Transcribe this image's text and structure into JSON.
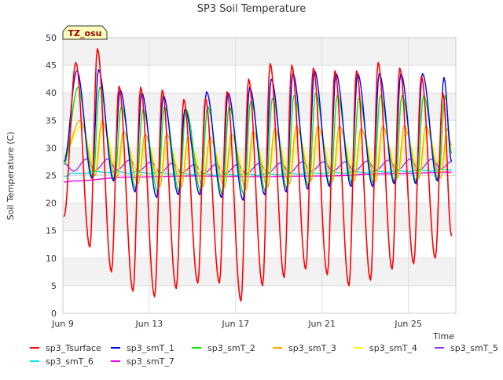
{
  "chart_data": {
    "type": "line",
    "title": "SP3 Soil Temperature",
    "xlabel": "Time",
    "ylabel": "Soil Temperature (C)",
    "site_label": "TZ_osu",
    "x_unit": "date (June)",
    "xlim": [
      9.0,
      27.2
    ],
    "ylim": [
      0,
      50
    ],
    "yticks": [
      0,
      5,
      10,
      15,
      20,
      25,
      30,
      35,
      40,
      45,
      50
    ],
    "xticks": [
      {
        "value": 9,
        "label": "Jun 9"
      },
      {
        "value": 13,
        "label": "Jun 13"
      },
      {
        "value": 17,
        "label": "Jun 17"
      },
      {
        "value": 21,
        "label": "Jun 21"
      },
      {
        "value": 25,
        "label": "Jun 25"
      }
    ],
    "grid": true,
    "legend_position": "bottom",
    "sample_step": 0.05,
    "series": [
      {
        "name": "sp3_Tsurface",
        "color": "#ff0000",
        "daily_peak_day": [
          9.6,
          10.6,
          11.6,
          12.6,
          13.6,
          14.6,
          15.6,
          16.6,
          17.6,
          18.6,
          19.6,
          20.6,
          21.6,
          22.6,
          23.6,
          24.6,
          25.6,
          26.6
        ],
        "daily_max": [
          45.5,
          48.0,
          41.2,
          41.0,
          40.5,
          38.8,
          39.0,
          40.2,
          42.5,
          45.3,
          45.0,
          44.5,
          44.0,
          44.0,
          45.5,
          44.5,
          43.0,
          40.0
        ],
        "daily_min_day": [
          10.25,
          11.25,
          12.25,
          13.25,
          14.25,
          15.25,
          16.25,
          17.25,
          18.25,
          19.25,
          20.25,
          21.25,
          22.25,
          23.25,
          24.25,
          25.25,
          26.25
        ],
        "daily_min": [
          12.0,
          7.5,
          4.0,
          3.0,
          4.5,
          5.5,
          5.5,
          2.2,
          5.0,
          6.5,
          8.0,
          7.0,
          5.0,
          6.0,
          8.0,
          9.0,
          10.0
        ],
        "start": {
          "x": 9.05,
          "y": 17.5
        },
        "end": {
          "x": 27.0,
          "y": 14.0
        }
      },
      {
        "name": "sp3_smT_1",
        "color": "#0000ff",
        "daily_peak_day": [
          9.65,
          10.65,
          11.65,
          12.65,
          13.65,
          14.65,
          15.65,
          16.65,
          17.65,
          18.65,
          19.65,
          20.65,
          21.65,
          22.65,
          23.65,
          24.65,
          25.65,
          26.65
        ],
        "daily_max": [
          44.0,
          44.2,
          40.5,
          40.0,
          39.5,
          37.0,
          40.2,
          40.0,
          41.0,
          42.5,
          43.5,
          44.0,
          43.5,
          43.5,
          43.5,
          43.5,
          43.5,
          42.8
        ],
        "daily_min_day": [
          10.35,
          11.35,
          12.35,
          13.35,
          14.35,
          15.35,
          16.35,
          17.35,
          18.35,
          19.35,
          20.35,
          21.35,
          22.35,
          23.35,
          24.35,
          25.35,
          26.35
        ],
        "daily_min": [
          24.5,
          24.0,
          22.0,
          21.0,
          21.5,
          21.5,
          21.0,
          20.5,
          21.5,
          22.0,
          22.5,
          23.0,
          23.0,
          23.0,
          23.5,
          23.5,
          24.0
        ],
        "start": {
          "x": 9.05,
          "y": 27.5
        },
        "end": {
          "x": 27.0,
          "y": 27.5
        }
      },
      {
        "name": "sp3_smT_2",
        "color": "#00ee00",
        "daily_peak_day": [
          9.7,
          10.7,
          11.7,
          12.7,
          13.7,
          14.7,
          15.7,
          16.7,
          17.7,
          18.7,
          19.7,
          20.7,
          21.7,
          22.7,
          23.7,
          24.7,
          25.7,
          26.7
        ],
        "daily_max": [
          41.0,
          41.0,
          37.5,
          37.0,
          37.5,
          37.0,
          37.5,
          37.5,
          38.5,
          39.0,
          39.5,
          40.0,
          39.5,
          39.0,
          39.5,
          39.5,
          39.5,
          39.5
        ],
        "daily_min_day": [
          10.4,
          11.4,
          12.4,
          13.4,
          14.4,
          15.4,
          16.4,
          17.4,
          18.4,
          19.4,
          20.4,
          21.4,
          22.4,
          23.4,
          24.4,
          25.4,
          26.4
        ],
        "daily_min": [
          24.5,
          24.0,
          22.5,
          22.0,
          22.0,
          22.0,
          21.5,
          21.5,
          22.0,
          22.5,
          23.0,
          23.0,
          23.5,
          23.5,
          23.5,
          23.5,
          24.0
        ],
        "start": {
          "x": 9.05,
          "y": 27.0
        },
        "end": {
          "x": 27.0,
          "y": 29.0
        }
      },
      {
        "name": "sp3_smT_3",
        "color": "#ffa500",
        "daily_peak_day": [
          9.8,
          10.8,
          11.8,
          12.8,
          13.8,
          14.8,
          15.8,
          16.8,
          17.8,
          18.8,
          19.8,
          20.8,
          21.8,
          22.8,
          23.8,
          24.8,
          25.8,
          26.8
        ],
        "daily_max": [
          35.0,
          35.0,
          33.0,
          32.5,
          32.5,
          32.0,
          32.0,
          32.5,
          33.0,
          33.5,
          34.0,
          34.0,
          34.0,
          33.5,
          34.0,
          34.0,
          34.0,
          33.5
        ],
        "daily_min_day": [
          10.5,
          11.5,
          12.5,
          13.5,
          14.5,
          15.5,
          16.5,
          17.5,
          18.5,
          19.5,
          20.5,
          21.5,
          22.5,
          23.5,
          24.5,
          25.5,
          26.5
        ],
        "daily_min": [
          25.0,
          24.5,
          23.5,
          23.0,
          23.0,
          23.0,
          23.0,
          22.5,
          23.0,
          23.5,
          24.0,
          24.0,
          24.0,
          24.0,
          24.5,
          24.5,
          24.5
        ],
        "start": {
          "x": 9.05,
          "y": 28.5
        },
        "end": {
          "x": 27.0,
          "y": 30.5
        }
      },
      {
        "name": "sp3_smT_4",
        "color": "#ffff00",
        "daily_peak_day": [
          9.85,
          10.85,
          11.85,
          12.85,
          13.85,
          14.85,
          15.85,
          16.85,
          17.85,
          18.85,
          19.85,
          20.85,
          21.85,
          22.85,
          23.85,
          24.85,
          25.85,
          26.85
        ],
        "daily_max": [
          34.0,
          34.5,
          32.0,
          31.5,
          31.0,
          31.0,
          31.0,
          31.5,
          32.0,
          32.5,
          33.0,
          33.0,
          33.0,
          33.0,
          33.0,
          33.0,
          33.0,
          32.5
        ],
        "daily_min_day": [
          10.55,
          11.55,
          12.55,
          13.55,
          14.55,
          15.55,
          16.55,
          17.55,
          18.55,
          19.55,
          20.55,
          21.55,
          22.55,
          23.55,
          24.55,
          25.55,
          26.55
        ],
        "daily_min": [
          26.0,
          25.5,
          25.0,
          24.5,
          24.5,
          24.5,
          24.5,
          24.0,
          24.5,
          25.0,
          25.0,
          25.5,
          25.5,
          25.5,
          25.5,
          25.5,
          26.0
        ],
        "start": {
          "x": 9.05,
          "y": 29.0
        },
        "end": {
          "x": 27.0,
          "y": 30.0
        }
      },
      {
        "name": "sp3_smT_5",
        "color": "#9933ff",
        "daily_peak_day": [
          10.1,
          11.1,
          12.1,
          13.1,
          14.1,
          15.1,
          16.1,
          17.1,
          18.1,
          19.1,
          20.1,
          21.1,
          22.1,
          23.1,
          24.1,
          25.1,
          26.1
        ],
        "daily_max": [
          28.0,
          28.0,
          27.8,
          27.5,
          27.3,
          27.0,
          27.0,
          27.0,
          27.2,
          27.3,
          27.5,
          27.5,
          27.5,
          27.6,
          27.8,
          28.0,
          28.0
        ],
        "daily_min_day": [
          9.5,
          10.5,
          11.5,
          12.5,
          13.5,
          14.5,
          15.5,
          16.5,
          17.5,
          18.5,
          19.5,
          20.5,
          21.5,
          22.5,
          23.5,
          24.5,
          25.5,
          26.5
        ],
        "daily_min": [
          25.8,
          26.0,
          26.0,
          25.8,
          25.5,
          25.5,
          25.3,
          25.3,
          25.3,
          25.5,
          25.5,
          25.8,
          25.8,
          25.8,
          26.0,
          26.0,
          26.0,
          26.2
        ],
        "start": {
          "x": 9.05,
          "y": 27.2
        },
        "end": {
          "x": 27.0,
          "y": 27.5
        }
      },
      {
        "name": "sp3_smT_6",
        "color": "#00e5ee",
        "daily_peak_day": [
          9.4,
          10.4,
          11.4,
          12.4,
          13.4,
          14.4,
          15.4,
          16.4,
          17.4,
          18.4,
          19.4,
          20.4,
          21.4,
          22.4,
          23.4,
          24.4,
          25.4,
          26.4
        ],
        "daily_max": [
          25.4,
          25.8,
          25.8,
          25.7,
          25.6,
          25.5,
          25.4,
          25.3,
          25.3,
          25.3,
          25.4,
          25.5,
          25.6,
          25.7,
          25.8,
          25.9,
          26.0,
          26.1
        ],
        "daily_min_day": [
          9.1,
          10.1,
          11.1,
          12.1,
          13.1,
          14.1,
          15.1,
          16.1,
          17.1,
          18.1,
          19.1,
          20.1,
          21.1,
          22.1,
          23.1,
          24.1,
          25.1,
          26.1
        ],
        "daily_min": [
          24.8,
          25.4,
          25.5,
          25.4,
          25.3,
          25.2,
          25.1,
          25.0,
          25.0,
          25.0,
          25.1,
          25.2,
          25.3,
          25.4,
          25.5,
          25.6,
          25.7,
          25.8
        ],
        "start": {
          "x": 9.05,
          "y": 24.8
        },
        "end": {
          "x": 27.0,
          "y": 26.0
        }
      },
      {
        "name": "sp3_smT_7",
        "color": "#ee00ee",
        "daily_peak_day": [
          9.5,
          12.0,
          15.0,
          18.0,
          21.0,
          24.0,
          27.0
        ],
        "daily_max": [
          24.0,
          24.7,
          24.9,
          24.8,
          24.9,
          25.3,
          25.6
        ],
        "daily_min_day": [],
        "daily_min": [],
        "start": {
          "x": 9.05,
          "y": 23.8
        },
        "end": {
          "x": 27.0,
          "y": 25.6
        }
      }
    ]
  }
}
